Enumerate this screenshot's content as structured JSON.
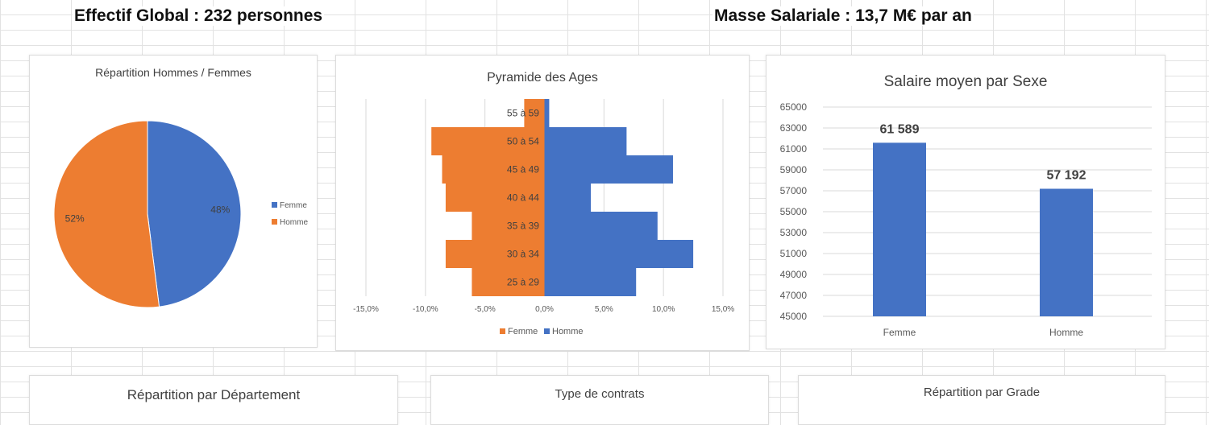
{
  "header": {
    "effectif": "Effectif Global : 232 personnes",
    "masse": "Masse Salariale : 13,7 M€ par an"
  },
  "colors": {
    "femme": "#4472C4",
    "homme": "#ED7D31"
  },
  "chart_data": [
    {
      "type": "pie",
      "title": "Répartition Hommes / Femmes",
      "labels": [
        "Femme",
        "Homme"
      ],
      "values": [
        48,
        52
      ],
      "data_labels": [
        "48%",
        "52%"
      ],
      "legend": "right"
    },
    {
      "type": "bar",
      "orientation": "horizontal",
      "title": "Pyramide des Ages",
      "categories": [
        "55 à 59",
        "50 à 54",
        "45 à 49",
        "40 à 44",
        "35 à 39",
        "30 à 34",
        "25 à 29"
      ],
      "series": [
        {
          "name": "Femme",
          "values": [
            -1.7,
            -9.5,
            -8.6,
            -8.3,
            -6.1,
            -8.3,
            -6.1
          ]
        },
        {
          "name": "Homme",
          "values": [
            0.4,
            6.9,
            10.8,
            3.9,
            9.5,
            12.5,
            7.7
          ]
        }
      ],
      "xlim": [
        -15,
        15
      ],
      "ticks": [
        "-15,0%",
        "-10,0%",
        "-5,0%",
        "0,0%",
        "5,0%",
        "10,0%",
        "15,0%"
      ],
      "grid": true,
      "legend": "bottom"
    },
    {
      "type": "bar",
      "title": "Salaire moyen par Sexe",
      "categories": [
        "Femme",
        "Homme"
      ],
      "values": [
        61589,
        57192
      ],
      "data_labels": [
        "61 589",
        "57 192"
      ],
      "ylim": [
        45000,
        65000
      ],
      "ticks": [
        "45000",
        "47000",
        "49000",
        "51000",
        "53000",
        "55000",
        "57000",
        "59000",
        "61000",
        "63000",
        "65000"
      ],
      "grid": true
    }
  ],
  "bottom_cards": {
    "departement": "Répartition par Département",
    "contrats": "Type de contrats",
    "grade": "Répartition par Grade"
  }
}
